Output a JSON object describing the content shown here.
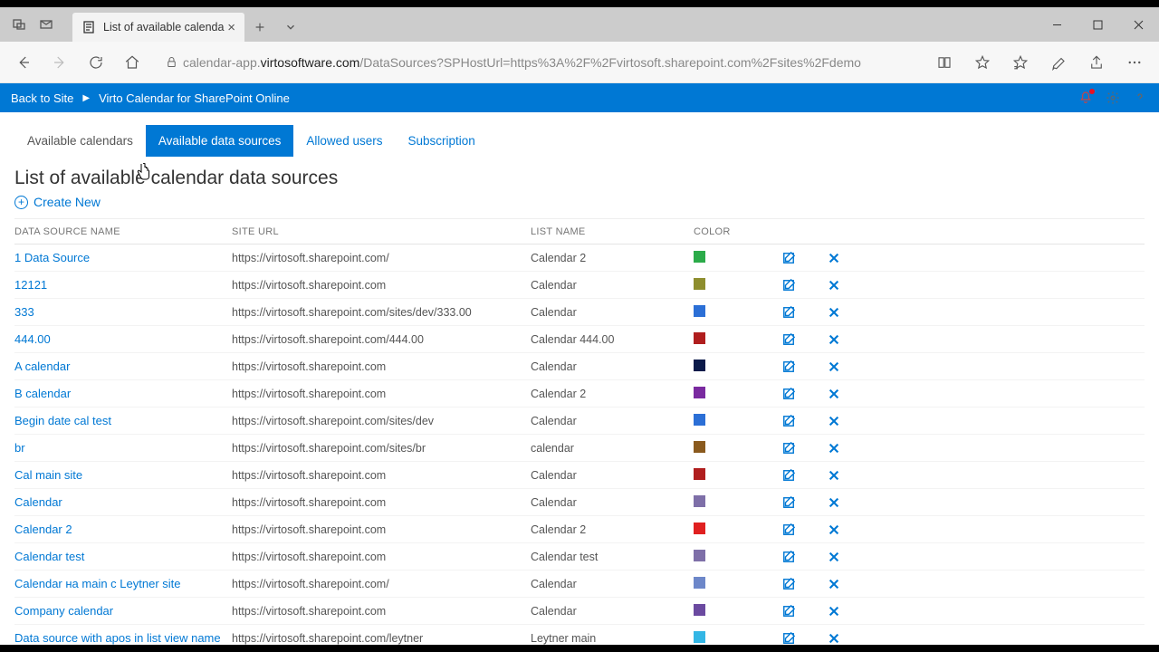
{
  "browser": {
    "tab_title": "List of available calenda",
    "url_pre": "calendar-app.",
    "url_host": "virtosoftware.com",
    "url_post": "/DataSources?SPHostUrl=https%3A%2F%2Fvirtosoft.sharepoint.com%2Fsites%2Fdemo"
  },
  "header": {
    "back_to_site": "Back to Site",
    "app_title": "Virto Calendar for SharePoint Online"
  },
  "tabs": [
    {
      "label": "Available calendars",
      "state": "inactive"
    },
    {
      "label": "Available data sources",
      "state": "active"
    },
    {
      "label": "Allowed users",
      "state": "link"
    },
    {
      "label": "Subscription",
      "state": "link"
    }
  ],
  "page": {
    "title": "List of available calendar data sources",
    "create_new": "Create New"
  },
  "columns": {
    "name": "Data Source Name",
    "url": "Site URL",
    "list": "List Name",
    "color": "Color"
  },
  "rows": [
    {
      "name": "1 Data Source",
      "url": "https://virtosoft.sharepoint.com/",
      "list": "Calendar 2",
      "color": "#2bab49"
    },
    {
      "name": "12121",
      "url": "https://virtosoft.sharepoint.com",
      "list": "Calendar",
      "color": "#8e8e2e"
    },
    {
      "name": "333",
      "url": "https://virtosoft.sharepoint.com/sites/dev/333.00",
      "list": "Calendar",
      "color": "#2b6fd6"
    },
    {
      "name": "444.00",
      "url": "https://virtosoft.sharepoint.com/444.00",
      "list": "Calendar 444.00",
      "color": "#b01e1e"
    },
    {
      "name": "A calendar",
      "url": "https://virtosoft.sharepoint.com",
      "list": "Calendar",
      "color": "#0b1a4a"
    },
    {
      "name": "B calendar",
      "url": "https://virtosoft.sharepoint.com",
      "list": "Calendar 2",
      "color": "#7a2aa0"
    },
    {
      "name": "Begin date cal test",
      "url": "https://virtosoft.sharepoint.com/sites/dev",
      "list": "Calendar",
      "color": "#2b6fd6"
    },
    {
      "name": "br",
      "url": "https://virtosoft.sharepoint.com/sites/br",
      "list": "calendar",
      "color": "#8a5a1e"
    },
    {
      "name": "Cal main site",
      "url": "https://virtosoft.sharepoint.com",
      "list": "Calendar",
      "color": "#b01e1e"
    },
    {
      "name": "Calendar",
      "url": "https://virtosoft.sharepoint.com",
      "list": "Calendar",
      "color": "#7e6fa8"
    },
    {
      "name": "Calendar 2",
      "url": "https://virtosoft.sharepoint.com",
      "list": "Calendar 2",
      "color": "#e02020"
    },
    {
      "name": "Calendar test",
      "url": "https://virtosoft.sharepoint.com",
      "list": "Calendar test",
      "color": "#7e6fa8"
    },
    {
      "name": "Calendar на main с Leytner site",
      "url": "https://virtosoft.sharepoint.com/",
      "list": "Calendar",
      "color": "#6d87c9"
    },
    {
      "name": "Company calendar",
      "url": "https://virtosoft.sharepoint.com",
      "list": "Calendar",
      "color": "#6b4aa0"
    },
    {
      "name": "Data source with apos in list view name",
      "url": "https://virtosoft.sharepoint.com/leytner",
      "list": "Leytner main",
      "color": "#33b6e5"
    }
  ],
  "styling": {
    "accent": "#0078d4",
    "titlebar_bg": "#cccccc",
    "addrbar_bg": "#f7f7f7",
    "text_muted": "#767676",
    "row_border": "#f3f3f3"
  }
}
